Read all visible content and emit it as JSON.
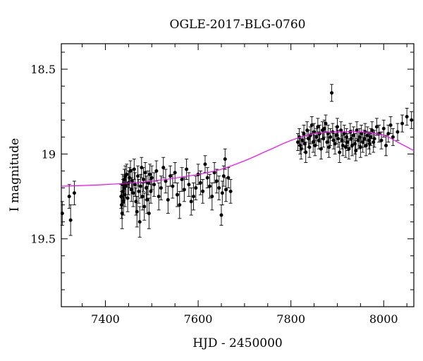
{
  "chart_data": {
    "type": "scatter",
    "title": "OGLE-2017-BLG-0760",
    "xlabel": "HJD - 2450000",
    "ylabel": "I magnitude",
    "xlim": [
      7305,
      8065
    ],
    "ylim": [
      18.35,
      19.9
    ],
    "y_inverted": true,
    "grid": false,
    "x_ticks": [
      "7400",
      "7600",
      "7800",
      "8000"
    ],
    "y_ticks": [
      "18.5",
      "19",
      "19.5"
    ],
    "x_tick_values": [
      7400,
      7600,
      7800,
      8000
    ],
    "y_tick_values": [
      18.5,
      19.0,
      19.5
    ],
    "x_minor_step": 50,
    "y_minor_step": 0.1,
    "colors": {
      "data": "#000000",
      "model": "#ff00ff"
    },
    "series": [
      {
        "type": "scatter-errorbars",
        "x": [
          7307,
          7322,
          7325,
          7333,
          7434,
          7435,
          7436,
          7437,
          7438,
          7439,
          7440,
          7441,
          7442,
          7443,
          7444,
          7446,
          7448,
          7450,
          7452,
          7454,
          7456,
          7458,
          7460,
          7462,
          7464,
          7466,
          7468,
          7470,
          7472,
          7474,
          7476,
          7478,
          7480,
          7482,
          7484,
          7486,
          7488,
          7490,
          7492,
          7494,
          7496,
          7498,
          7500,
          7505,
          7510,
          7515,
          7520,
          7525,
          7530,
          7535,
          7540,
          7545,
          7550,
          7555,
          7560,
          7565,
          7570,
          7575,
          7580,
          7585,
          7590,
          7595,
          7600,
          7605,
          7610,
          7615,
          7620,
          7625,
          7630,
          7635,
          7640,
          7645,
          7650,
          7652,
          7655,
          7658,
          7660,
          7665,
          7670,
          7815,
          7818,
          7820,
          7822,
          7825,
          7828,
          7830,
          7832,
          7835,
          7838,
          7840,
          7842,
          7845,
          7848,
          7850,
          7852,
          7855,
          7858,
          7860,
          7862,
          7865,
          7868,
          7870,
          7872,
          7875,
          7878,
          7880,
          7882,
          7885,
          7888,
          7890,
          7892,
          7895,
          7898,
          7900,
          7902,
          7905,
          7908,
          7910,
          7912,
          7915,
          7918,
          7920,
          7922,
          7925,
          7928,
          7930,
          7932,
          7935,
          7938,
          7940,
          7942,
          7945,
          7948,
          7950,
          7952,
          7955,
          7958,
          7960,
          7962,
          7965,
          7968,
          7970,
          7972,
          7975,
          7978,
          7980,
          7985,
          7990,
          7995,
          8000,
          8005,
          8010,
          8015,
          8020,
          8030,
          8040,
          8050,
          8060
        ],
        "y": [
          19.35,
          19.25,
          19.39,
          19.23,
          19.25,
          19.3,
          19.35,
          19.18,
          19.22,
          19.28,
          19.2,
          19.15,
          19.24,
          19.13,
          19.19,
          19.12,
          19.26,
          19.17,
          19.14,
          19.1,
          19.21,
          19.16,
          19.23,
          19.09,
          19.18,
          19.28,
          19.34,
          19.13,
          19.22,
          19.4,
          19.19,
          19.08,
          19.25,
          19.15,
          19.31,
          19.11,
          19.2,
          19.27,
          19.17,
          19.35,
          19.12,
          19.22,
          19.14,
          19.18,
          19.1,
          19.25,
          19.2,
          19.08,
          19.16,
          19.27,
          19.13,
          19.19,
          19.11,
          19.24,
          19.3,
          19.15,
          19.21,
          19.09,
          19.18,
          19.28,
          19.25,
          19.2,
          19.12,
          19.17,
          19.22,
          19.06,
          19.14,
          19.19,
          19.25,
          19.11,
          19.16,
          19.2,
          19.36,
          19.23,
          19.13,
          19.03,
          19.21,
          19.14,
          19.22,
          18.93,
          18.9,
          18.95,
          18.97,
          18.92,
          18.88,
          18.94,
          18.99,
          18.86,
          18.91,
          18.96,
          18.89,
          18.83,
          18.93,
          18.87,
          18.95,
          18.9,
          18.84,
          18.92,
          18.88,
          18.97,
          18.86,
          18.91,
          18.85,
          18.82,
          18.93,
          18.88,
          18.96,
          18.9,
          18.64,
          18.87,
          18.92,
          18.94,
          18.89,
          18.84,
          18.91,
          18.99,
          18.86,
          18.92,
          18.95,
          18.88,
          18.96,
          18.9,
          18.93,
          18.97,
          18.87,
          18.91,
          18.95,
          18.89,
          18.94,
          18.98,
          18.86,
          18.92,
          18.9,
          18.96,
          18.88,
          18.93,
          18.91,
          18.87,
          18.95,
          18.89,
          18.92,
          18.94,
          18.9,
          18.86,
          18.93,
          18.91,
          18.84,
          18.88,
          18.92,
          18.85,
          18.95,
          18.88,
          18.83,
          18.9,
          18.87,
          18.82,
          18.78,
          18.8
        ],
        "err": [
          0.07,
          0.07,
          0.09,
          0.07,
          0.07,
          0.08,
          0.09,
          0.06,
          0.07,
          0.08,
          0.07,
          0.06,
          0.07,
          0.06,
          0.07,
          0.06,
          0.08,
          0.07,
          0.06,
          0.06,
          0.07,
          0.07,
          0.08,
          0.06,
          0.07,
          0.08,
          0.09,
          0.06,
          0.07,
          0.09,
          0.07,
          0.06,
          0.08,
          0.07,
          0.08,
          0.06,
          0.07,
          0.08,
          0.07,
          0.09,
          0.06,
          0.07,
          0.07,
          0.07,
          0.06,
          0.08,
          0.07,
          0.06,
          0.07,
          0.08,
          0.06,
          0.07,
          0.06,
          0.07,
          0.08,
          0.07,
          0.07,
          0.06,
          0.07,
          0.08,
          0.08,
          0.07,
          0.06,
          0.07,
          0.07,
          0.05,
          0.06,
          0.07,
          0.08,
          0.06,
          0.07,
          0.07,
          0.06,
          0.07,
          0.06,
          0.06,
          0.07,
          0.06,
          0.07,
          0.05,
          0.05,
          0.05,
          0.06,
          0.05,
          0.05,
          0.05,
          0.06,
          0.05,
          0.05,
          0.06,
          0.05,
          0.05,
          0.06,
          0.05,
          0.06,
          0.05,
          0.05,
          0.05,
          0.05,
          0.06,
          0.05,
          0.05,
          0.05,
          0.05,
          0.06,
          0.05,
          0.06,
          0.05,
          0.05,
          0.05,
          0.05,
          0.06,
          0.05,
          0.05,
          0.05,
          0.06,
          0.05,
          0.05,
          0.06,
          0.05,
          0.06,
          0.05,
          0.05,
          0.06,
          0.05,
          0.05,
          0.06,
          0.05,
          0.06,
          0.06,
          0.05,
          0.05,
          0.05,
          0.06,
          0.05,
          0.06,
          0.05,
          0.05,
          0.06,
          0.05,
          0.05,
          0.06,
          0.05,
          0.05,
          0.06,
          0.05,
          0.05,
          0.05,
          0.05,
          0.05,
          0.06,
          0.05,
          0.05,
          0.05,
          0.05,
          0.05,
          0.05,
          0.05
        ]
      },
      {
        "type": "line",
        "x": [
          7305,
          7400,
          7500,
          7600,
          7650,
          7700,
          7750,
          7800,
          7850,
          7900,
          7950,
          8000,
          8030,
          8065
        ],
        "y": [
          19.19,
          19.18,
          19.16,
          19.12,
          19.09,
          19.04,
          18.98,
          18.92,
          18.88,
          18.87,
          18.87,
          18.89,
          18.93,
          18.98
        ]
      }
    ]
  }
}
